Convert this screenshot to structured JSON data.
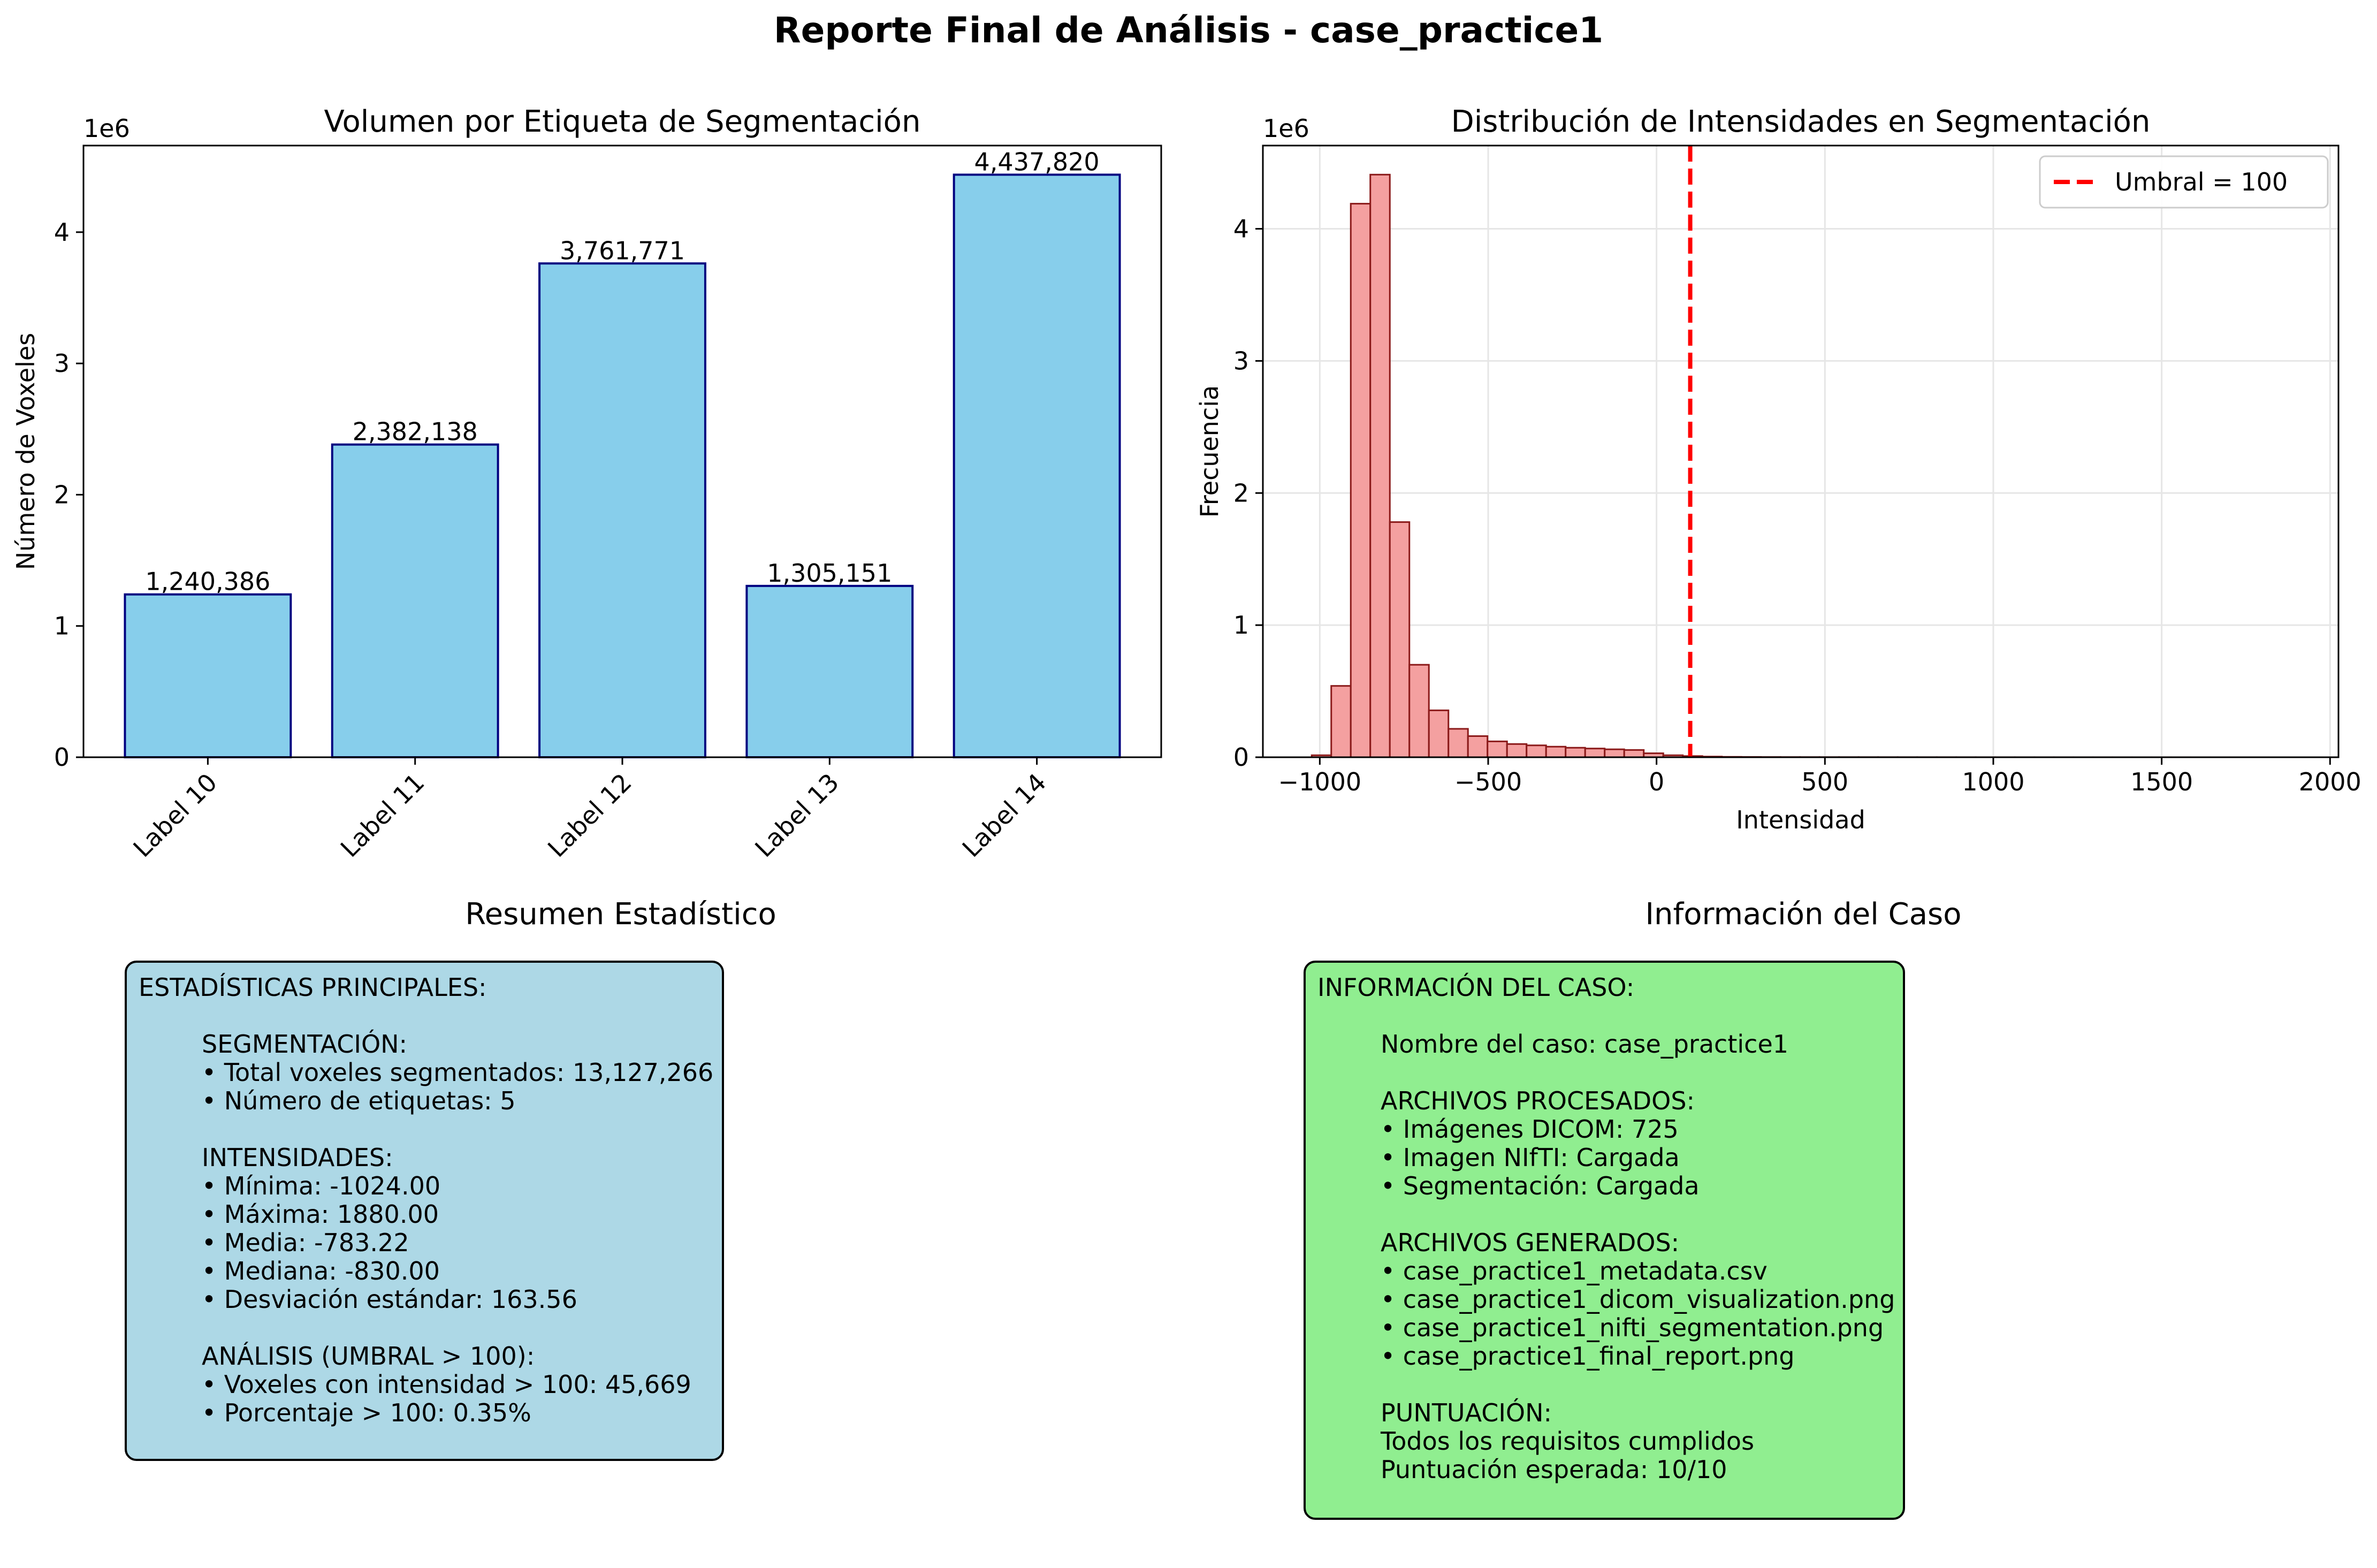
{
  "suptitle": "Reporte Final de Análisis - case_practice1",
  "colors": {
    "bar_fill": "#87CEEB",
    "bar_edge": "#000080",
    "hist_fill": "#F4A0A0",
    "hist_edge": "#8B1A1A",
    "threshold_line": "#FF0000",
    "stats_box": "#ADD8E6",
    "info_box": "#90EE90"
  },
  "chart_data": [
    {
      "type": "bar",
      "title": "Volumen por Etiqueta de Segmentación",
      "xlabel": "",
      "ylabel": "Número de Voxeles",
      "y_offset_label": "1e6",
      "categories": [
        "Label 10",
        "Label 11",
        "Label 12",
        "Label 13",
        "Label 14"
      ],
      "values": [
        1240386,
        2382138,
        3761771,
        1305151,
        4437820
      ],
      "value_labels": [
        "1,240,386",
        "2,382,138",
        "3,761,771",
        "1,305,151",
        "4,437,820"
      ],
      "ylim": [
        0,
        4659711
      ],
      "yticks": [
        0,
        1000000,
        2000000,
        3000000,
        4000000
      ],
      "ytick_labels": [
        "0",
        "1",
        "2",
        "3",
        "4"
      ],
      "grid": false
    },
    {
      "type": "bar",
      "subtype": "histogram",
      "title": "Distribución de Intensidades en Segmentación",
      "xlabel": "Intensidad",
      "ylabel": "Frecuencia",
      "y_offset_label": "1e6",
      "bin_start": -1024,
      "bin_width": 58,
      "counts": [
        15000,
        540000,
        4190000,
        4410000,
        1780000,
        700000,
        355000,
        215000,
        160000,
        120000,
        100000,
        90000,
        80000,
        72000,
        66000,
        60000,
        55000,
        30000,
        15000,
        9000,
        5000,
        3000,
        2000,
        1500,
        1200,
        1000,
        900,
        800,
        700,
        600,
        500,
        450,
        400,
        350,
        300,
        260,
        230,
        200,
        180,
        160,
        140,
        120,
        100,
        90,
        80,
        70,
        60,
        50,
        40,
        30
      ],
      "xlim": [
        -1169,
        2025
      ],
      "ylim": [
        0,
        4630000
      ],
      "xticks": [
        -1000,
        -500,
        0,
        500,
        1000,
        1500,
        2000
      ],
      "xtick_labels": [
        "−1000",
        "−500",
        "0",
        "500",
        "1000",
        "1500",
        "2000"
      ],
      "yticks": [
        0,
        1000000,
        2000000,
        3000000,
        4000000
      ],
      "ytick_labels": [
        "0",
        "1",
        "2",
        "3",
        "4"
      ],
      "threshold": 100,
      "legend": "Umbral = 100",
      "legend_position": "top-right",
      "grid": true
    }
  ],
  "stats_panel": {
    "title": "Resumen Estadístico",
    "header": "ESTADÍSTICAS PRINCIPALES:",
    "seg_title": "SEGMENTACIÓN:",
    "seg_items": [
      "• Total voxeles segmentados: 13,127,266",
      "• Número de etiquetas: 5"
    ],
    "int_title": "INTENSIDADES:",
    "int_items": [
      "• Mínima: -1024.00",
      "• Máxima: 1880.00",
      "• Media: -783.22",
      "• Mediana: -830.00",
      "• Desviación estándar: 163.56"
    ],
    "ana_title": "ANÁLISIS (UMBRAL > 100):",
    "ana_items": [
      "• Voxeles con intensidad > 100: 45,669",
      "• Porcentaje > 100: 0.35%"
    ]
  },
  "info_panel": {
    "title": "Información del Caso",
    "header": "INFORMACIÓN DEL CASO:",
    "case_name": "Nombre del caso: case_practice1",
    "proc_title": "ARCHIVOS PROCESADOS:",
    "proc_items": [
      "• Imágenes DICOM: 725",
      "• Imagen NIfTI: Cargada",
      "• Segmentación: Cargada"
    ],
    "gen_title": "ARCHIVOS GENERADOS:",
    "gen_items": [
      "• case_practice1_metadata.csv",
      "• case_practice1_dicom_visualization.png",
      "• case_practice1_nifti_segmentation.png",
      "• case_practice1_final_report.png"
    ],
    "score_title": "PUNTUACIÓN:",
    "score_items": [
      "Todos los requisitos cumplidos",
      "Puntuación esperada: 10/10"
    ]
  }
}
